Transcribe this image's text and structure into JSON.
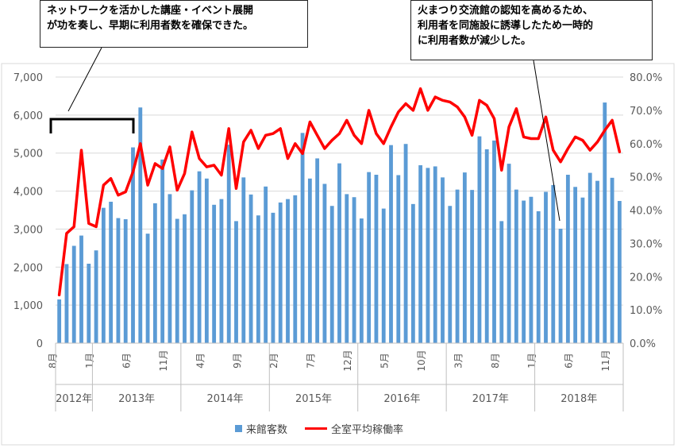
{
  "chart_data": {
    "type": "bar+line",
    "title": "",
    "callouts": [
      {
        "lines": [
          "ネットワークを活かした講座・イベント展開",
          "が功を奏し、早期に利用者数を確保できた。"
        ]
      },
      {
        "lines": [
          "火まつり交流館の認知を高めるため、",
          "利用者を同施設に誘導したため一時的",
          "に利用者数が減少した。"
        ]
      }
    ],
    "y_left": {
      "min": 0,
      "max": 7000,
      "ticks": [
        "0",
        "1,000",
        "2,000",
        "3,000",
        "4,000",
        "5,000",
        "6,000",
        "7,000"
      ]
    },
    "y_right": {
      "min": 0,
      "max": 80,
      "ticks": [
        "0.0%",
        "10.0%",
        "20.0%",
        "30.0%",
        "40.0%",
        "50.0%",
        "60.0%",
        "70.0%",
        "80.0%"
      ]
    },
    "month_labels": [
      {
        "index": 0,
        "label": "8月"
      },
      {
        "index": 5,
        "label": "1月"
      },
      {
        "index": 10,
        "label": "6月"
      },
      {
        "index": 15,
        "label": "11月"
      },
      {
        "index": 20,
        "label": "4月"
      },
      {
        "index": 25,
        "label": "9月"
      },
      {
        "index": 30,
        "label": "2月"
      },
      {
        "index": 35,
        "label": "7月"
      },
      {
        "index": 40,
        "label": "12月"
      },
      {
        "index": 45,
        "label": "5月"
      },
      {
        "index": 50,
        "label": "10月"
      },
      {
        "index": 55,
        "label": "3月"
      },
      {
        "index": 60,
        "label": "8月"
      },
      {
        "index": 65,
        "label": "1月"
      },
      {
        "index": 70,
        "label": "6月"
      },
      {
        "index": 75,
        "label": "11月"
      }
    ],
    "years": [
      {
        "label": "2012年",
        "start": 0,
        "end": 4
      },
      {
        "label": "2013年",
        "start": 5,
        "end": 16
      },
      {
        "label": "2014年",
        "start": 17,
        "end": 28
      },
      {
        "label": "2015年",
        "start": 29,
        "end": 40
      },
      {
        "label": "2016年",
        "start": 41,
        "end": 52
      },
      {
        "label": "2017年",
        "start": 53,
        "end": 64
      },
      {
        "label": "2018年",
        "start": 65,
        "end": 76
      }
    ],
    "series": [
      {
        "name": "来館客数",
        "type": "bar",
        "axis": "left",
        "color": "#5b9bd5",
        "values": [
          1150,
          2080,
          2560,
          2830,
          2090,
          2440,
          3560,
          3720,
          3290,
          3260,
          5150,
          6200,
          2880,
          3680,
          4830,
          3920,
          3270,
          3390,
          4020,
          4520,
          4330,
          3640,
          3790,
          5220,
          3210,
          4360,
          3910,
          3360,
          4120,
          3430,
          3700,
          3790,
          3890,
          5530,
          4330,
          4860,
          4190,
          3610,
          4730,
          3920,
          3840,
          3280,
          4500,
          4430,
          3540,
          5210,
          4420,
          5240,
          3660,
          4680,
          4610,
          4650,
          4360,
          3610,
          4040,
          4490,
          4030,
          5440,
          5100,
          5330,
          3210,
          4720,
          4040,
          3750,
          3850,
          3470,
          3980,
          4160,
          3010,
          4430,
          4110,
          3830,
          4480,
          4270,
          6330,
          4350,
          3740
        ]
      },
      {
        "name": "全室平均稼働率",
        "type": "line",
        "axis": "right",
        "color": "#ff0000",
        "values": [
          14.5,
          33,
          35,
          58,
          36,
          35,
          47.5,
          49.5,
          44.5,
          45.5,
          51.5,
          60,
          47.5,
          54,
          52.5,
          59,
          46,
          51,
          63.5,
          55.5,
          53,
          53.5,
          50.5,
          64.5,
          46.5,
          60.5,
          64,
          58.5,
          62.5,
          63,
          64.5,
          55.5,
          60,
          57,
          66.5,
          62.5,
          58.5,
          61,
          63,
          67,
          62.5,
          60,
          70,
          63,
          60,
          65,
          69.5,
          72,
          70,
          76.5,
          70,
          74,
          73,
          72.5,
          71,
          68,
          62.5,
          73,
          71.5,
          67.5,
          52,
          65,
          70.5,
          62,
          61.5,
          61.5,
          68,
          58,
          54.5,
          58.5,
          62,
          61,
          58,
          60.5,
          64,
          67,
          57.5
        ]
      }
    ]
  }
}
